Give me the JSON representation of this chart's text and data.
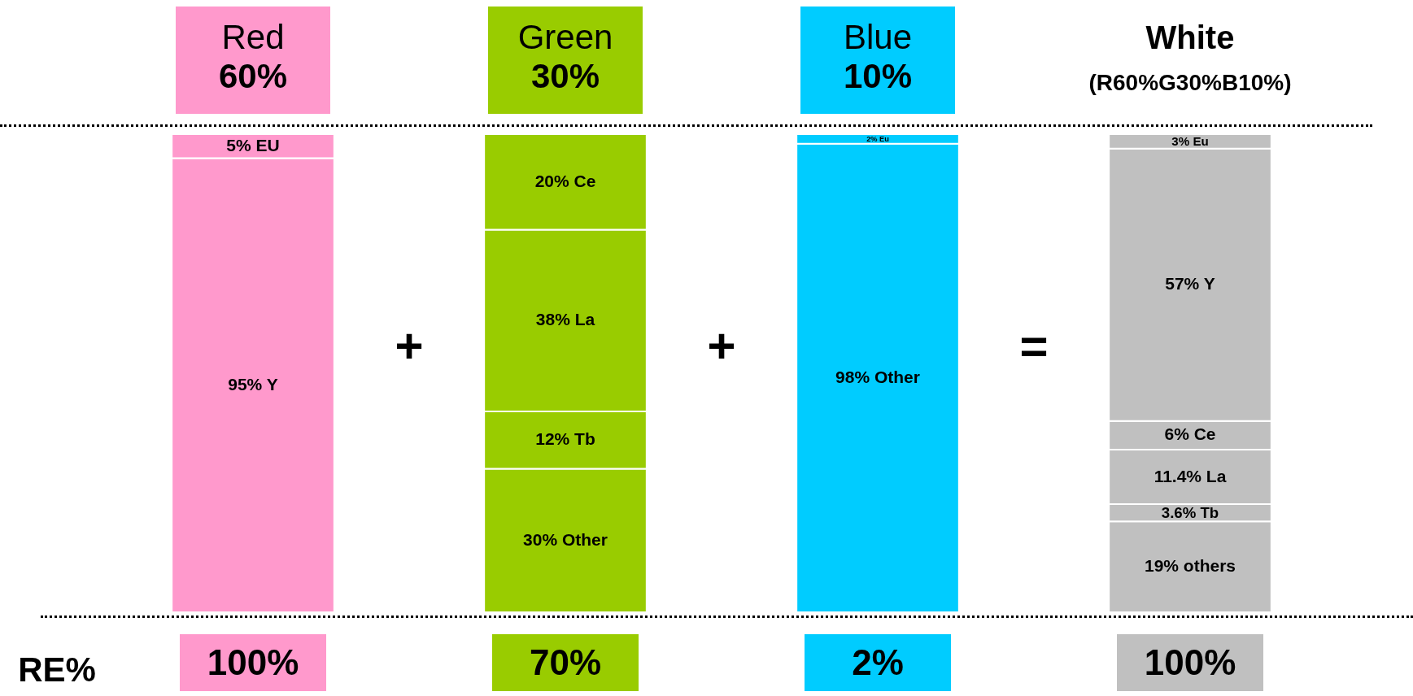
{
  "chart_data": {
    "type": "bar",
    "stacked": true,
    "categories": [
      "Red",
      "Green",
      "Blue",
      "White"
    ],
    "series": [
      {
        "colors": [
          "#ff99cc",
          "#99cc00",
          "#00ccff",
          "#c0c0c0"
        ],
        "values": [
          95,
          30,
          98,
          19
        ],
        "value_labels": [
          "95% Y",
          "30% Other",
          "98% Other",
          "19% others"
        ]
      },
      {
        "colors": [
          "#ff99cc",
          "#99cc00",
          "#00ccff",
          "#c0c0c0"
        ],
        "values": [
          5,
          12,
          2,
          3.6
        ],
        "value_labels": [
          "5% EU",
          "12% Tb",
          "2% Eu",
          "3.6% Tb"
        ]
      },
      {
        "colors": [
          null,
          "#99cc00",
          null,
          "#c0c0c0"
        ],
        "values": [
          null,
          38,
          null,
          11.4
        ],
        "value_labels": [
          null,
          "38% La",
          null,
          "11.4% La"
        ]
      },
      {
        "colors": [
          null,
          "#99cc00",
          null,
          "#c0c0c0"
        ],
        "values": [
          null,
          20,
          null,
          6
        ],
        "value_labels": [
          null,
          "20% Ce",
          null,
          "6% Ce"
        ]
      },
      {
        "colors": [
          null,
          null,
          null,
          "#c0c0c0"
        ],
        "values": [
          null,
          null,
          null,
          57
        ],
        "value_labels": [
          null,
          null,
          null,
          "57% Y"
        ]
      },
      {
        "colors": [
          null,
          null,
          null,
          "#c0c0c0"
        ],
        "values": [
          null,
          null,
          null,
          3
        ],
        "value_labels": [
          null,
          null,
          null,
          "3% Eu"
        ]
      }
    ],
    "annotations": [
      "60%",
      "30%",
      "10%",
      "(R60%G30%B10%)",
      "+",
      "+",
      "=",
      "RE%",
      "100%",
      "70%",
      "2%",
      "100%"
    ]
  }
}
